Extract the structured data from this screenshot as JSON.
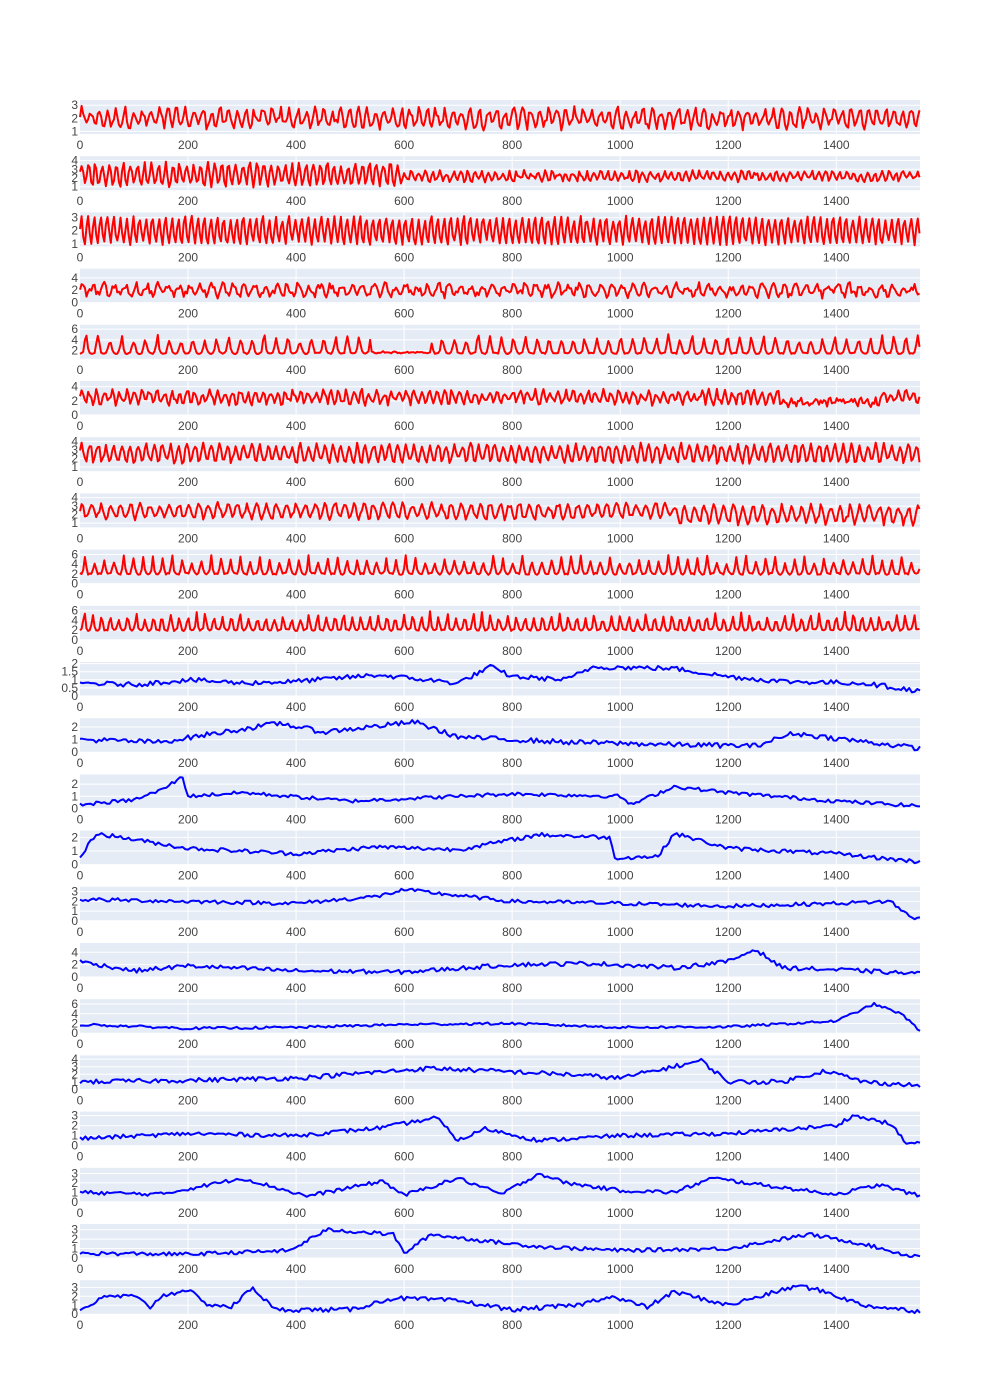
{
  "colors": {
    "plot_bg": "#E5ECF6",
    "grid": "#ffffff",
    "tick_text": "#444444",
    "red": "#FF0000",
    "blue": "#0000FF"
  },
  "chart_data": {
    "type": "line",
    "layout": "22 stacked subplots sharing one x range",
    "x_ticks": [
      0,
      200,
      400,
      600,
      800,
      1000,
      1200,
      1400
    ],
    "xlim": [
      0,
      1555
    ],
    "series_length": 1556,
    "panels": [
      {
        "color": "#FF0000",
        "ylim": [
          0.8,
          3.4
        ],
        "y_ticks": [
          1,
          2,
          3
        ],
        "y_tick_labels": [
          "1",
          "2",
          "3"
        ],
        "pattern": "oscillating",
        "base": 2.0,
        "amplitude": 0.6,
        "period": 16,
        "noise": 0.35,
        "segments": []
      },
      {
        "color": "#FF0000",
        "ylim": [
          0.6,
          4.5
        ],
        "y_ticks": [
          1,
          2,
          3,
          4
        ],
        "y_tick_labels": [
          "1",
          "2",
          "3",
          "4"
        ],
        "pattern": "oscillating",
        "base": 2.4,
        "amplitude": 1.2,
        "period": 13,
        "noise": 0.3,
        "segments": [
          {
            "from": 600,
            "to": 1555,
            "amplitude": 0.45,
            "base": 2.2
          }
        ]
      },
      {
        "color": "#FF0000",
        "ylim": [
          0.8,
          3.4
        ],
        "y_ticks": [
          1,
          2,
          3
        ],
        "y_tick_labels": [
          "1",
          "2",
          "3"
        ],
        "pattern": "oscillating",
        "base": 2.0,
        "amplitude": 1.0,
        "period": 12,
        "noise": 0.15,
        "segments": []
      },
      {
        "color": "#FF0000",
        "ylim": [
          0,
          5.5
        ],
        "y_ticks": [
          0,
          2,
          4
        ],
        "y_tick_labels": [
          "0",
          "2",
          "4"
        ],
        "pattern": "oscillating",
        "base": 2.0,
        "amplitude": 0.8,
        "period": 20,
        "noise": 0.6,
        "segments": []
      },
      {
        "color": "#FF0000",
        "ylim": [
          0.5,
          6.8
        ],
        "y_ticks": [
          2,
          4,
          6
        ],
        "y_tick_labels": [
          "2",
          "4",
          "6"
        ],
        "pattern": "spiky",
        "base": 1.5,
        "amplitude": 2.8,
        "period": 22,
        "noise": 0.25,
        "segments": [
          {
            "from": 540,
            "to": 650,
            "amplitude": 0.2,
            "base": 1.6
          }
        ]
      },
      {
        "color": "#FF0000",
        "ylim": [
          0,
          4.8
        ],
        "y_ticks": [
          0,
          2,
          4
        ],
        "y_tick_labels": [
          "0",
          "2",
          "4"
        ],
        "pattern": "oscillating",
        "base": 2.5,
        "amplitude": 0.8,
        "period": 14,
        "noise": 0.45,
        "segments": [
          {
            "from": 1300,
            "to": 1480,
            "amplitude": 0.3,
            "base": 1.8
          }
        ]
      },
      {
        "color": "#FF0000",
        "ylim": [
          0.5,
          4.5
        ],
        "y_ticks": [
          1,
          2,
          3,
          4
        ],
        "y_tick_labels": [
          "1",
          "2",
          "3",
          "4"
        ],
        "pattern": "oscillating",
        "base": 2.6,
        "amplitude": 1.0,
        "period": 15,
        "noise": 0.3,
        "segments": []
      },
      {
        "color": "#FF0000",
        "ylim": [
          0.5,
          4.5
        ],
        "y_ticks": [
          1,
          2,
          3,
          4
        ],
        "y_tick_labels": [
          "1",
          "2",
          "3",
          "4"
        ],
        "pattern": "oscillating",
        "base": 2.4,
        "amplitude": 0.8,
        "period": 18,
        "noise": 0.3,
        "segments": [
          {
            "from": 1100,
            "to": 1555,
            "amplitude": 1.0,
            "base": 2.0
          }
        ]
      },
      {
        "color": "#FF0000",
        "ylim": [
          0,
          7
        ],
        "y_ticks": [
          0,
          2,
          4,
          6
        ],
        "y_tick_labels": [
          "0",
          "2",
          "4",
          "6"
        ],
        "pattern": "spiky",
        "base": 2.0,
        "amplitude": 3.0,
        "period": 18,
        "noise": 0.4,
        "segments": []
      },
      {
        "color": "#FF0000",
        "ylim": [
          0,
          7
        ],
        "y_ticks": [
          0,
          2,
          4,
          6
        ],
        "y_tick_labels": [
          "0",
          "2",
          "4",
          "6"
        ],
        "pattern": "spiky",
        "base": 2.0,
        "amplitude": 3.0,
        "period": 16,
        "noise": 0.4,
        "segments": []
      },
      {
        "color": "#0000FF",
        "ylim": [
          0,
          2.1
        ],
        "y_ticks": [
          0,
          0.5,
          1,
          1.5,
          2
        ],
        "y_tick_labels": [
          "0",
          "0.5",
          "1",
          "1.5",
          "2"
        ],
        "pattern": "smooth",
        "knots": [
          [
            0,
            0.8
          ],
          [
            100,
            0.7
          ],
          [
            200,
            1.0
          ],
          [
            300,
            0.8
          ],
          [
            400,
            0.9
          ],
          [
            550,
            1.3
          ],
          [
            700,
            0.8
          ],
          [
            760,
            1.8
          ],
          [
            800,
            1.2
          ],
          [
            900,
            1.0
          ],
          [
            950,
            1.8
          ],
          [
            1100,
            1.7
          ],
          [
            1200,
            1.2
          ],
          [
            1300,
            0.9
          ],
          [
            1450,
            0.8
          ],
          [
            1555,
            0.3
          ]
        ],
        "noise": 0.15
      },
      {
        "color": "#0000FF",
        "ylim": [
          0,
          2.7
        ],
        "y_ticks": [
          0,
          1,
          2
        ],
        "y_tick_labels": [
          "0",
          "1",
          "2"
        ],
        "pattern": "smooth",
        "knots": [
          [
            0,
            1.0
          ],
          [
            150,
            0.8
          ],
          [
            250,
            1.5
          ],
          [
            370,
            2.3
          ],
          [
            450,
            1.6
          ],
          [
            620,
            2.4
          ],
          [
            700,
            1.2
          ],
          [
            900,
            0.8
          ],
          [
            1100,
            0.6
          ],
          [
            1250,
            0.5
          ],
          [
            1320,
            1.5
          ],
          [
            1420,
            1.0
          ],
          [
            1555,
            0.3
          ]
        ],
        "noise": 0.2
      },
      {
        "color": "#0000FF",
        "ylim": [
          0,
          2.8
        ],
        "y_ticks": [
          0,
          1,
          2
        ],
        "y_tick_labels": [
          "0",
          "1",
          "2"
        ],
        "pattern": "smooth",
        "knots": [
          [
            0,
            0.3
          ],
          [
            100,
            0.7
          ],
          [
            150,
            1.5
          ],
          [
            190,
            2.6
          ],
          [
            200,
            1.0
          ],
          [
            300,
            1.3
          ],
          [
            500,
            0.6
          ],
          [
            800,
            1.2
          ],
          [
            1000,
            1.0
          ],
          [
            1020,
            0.3
          ],
          [
            1100,
            1.8
          ],
          [
            1200,
            1.3
          ],
          [
            1400,
            0.6
          ],
          [
            1555,
            0.2
          ]
        ],
        "noise": 0.15
      },
      {
        "color": "#0000FF",
        "ylim": [
          0,
          2.5
        ],
        "y_ticks": [
          0,
          1,
          2
        ],
        "y_tick_labels": [
          "0",
          "1",
          "2"
        ],
        "pattern": "smooth",
        "knots": [
          [
            0,
            0.5
          ],
          [
            30,
            2.3
          ],
          [
            200,
            1.2
          ],
          [
            400,
            0.8
          ],
          [
            550,
            1.3
          ],
          [
            700,
            1.1
          ],
          [
            850,
            2.2
          ],
          [
            980,
            2.0
          ],
          [
            990,
            0.5
          ],
          [
            1070,
            0.6
          ],
          [
            1100,
            2.3
          ],
          [
            1200,
            1.2
          ],
          [
            1400,
            0.8
          ],
          [
            1555,
            0.2
          ]
        ],
        "noise": 0.15
      },
      {
        "color": "#0000FF",
        "ylim": [
          0,
          3.5
        ],
        "y_ticks": [
          0,
          1,
          2,
          3
        ],
        "y_tick_labels": [
          "0",
          "1",
          "2",
          "3"
        ],
        "pattern": "smooth",
        "knots": [
          [
            0,
            2.2
          ],
          [
            200,
            2.0
          ],
          [
            400,
            1.8
          ],
          [
            550,
            2.5
          ],
          [
            600,
            3.2
          ],
          [
            800,
            2.0
          ],
          [
            1000,
            1.8
          ],
          [
            1200,
            1.5
          ],
          [
            1400,
            1.8
          ],
          [
            1500,
            2.0
          ],
          [
            1540,
            0.3
          ],
          [
            1555,
            0.4
          ]
        ],
        "noise": 0.2
      },
      {
        "color": "#0000FF",
        "ylim": [
          0,
          5.5
        ],
        "y_ticks": [
          0,
          2,
          4
        ],
        "y_tick_labels": [
          "0",
          "2",
          "4"
        ],
        "pattern": "smooth",
        "knots": [
          [
            0,
            2.5
          ],
          [
            100,
            1.0
          ],
          [
            200,
            1.8
          ],
          [
            400,
            1.0
          ],
          [
            600,
            0.8
          ],
          [
            800,
            2.0
          ],
          [
            950,
            2.2
          ],
          [
            1100,
            1.5
          ],
          [
            1200,
            2.5
          ],
          [
            1250,
            4.5
          ],
          [
            1300,
            1.5
          ],
          [
            1450,
            1.0
          ],
          [
            1555,
            0.5
          ]
        ],
        "noise": 0.35
      },
      {
        "color": "#0000FF",
        "ylim": [
          0,
          7
        ],
        "y_ticks": [
          0,
          2,
          4,
          6
        ],
        "y_tick_labels": [
          "0",
          "2",
          "4",
          "6"
        ],
        "pattern": "smooth",
        "knots": [
          [
            0,
            1.8
          ],
          [
            200,
            1.0
          ],
          [
            400,
            1.2
          ],
          [
            600,
            1.8
          ],
          [
            800,
            2.0
          ],
          [
            1000,
            1.2
          ],
          [
            1200,
            1.3
          ],
          [
            1400,
            2.5
          ],
          [
            1470,
            6.0
          ],
          [
            1520,
            4.0
          ],
          [
            1555,
            0.5
          ]
        ],
        "noise": 0.25
      },
      {
        "color": "#0000FF",
        "ylim": [
          0,
          4.5
        ],
        "y_ticks": [
          0,
          1,
          2,
          3,
          4
        ],
        "y_tick_labels": [
          "0",
          "1",
          "2",
          "3",
          "4"
        ],
        "pattern": "smooth",
        "knots": [
          [
            0,
            1.0
          ],
          [
            200,
            1.2
          ],
          [
            400,
            1.5
          ],
          [
            650,
            2.8
          ],
          [
            900,
            2.0
          ],
          [
            1000,
            1.5
          ],
          [
            1150,
            3.8
          ],
          [
            1200,
            1.0
          ],
          [
            1300,
            1.0
          ],
          [
            1380,
            2.5
          ],
          [
            1450,
            1.0
          ],
          [
            1555,
            0.5
          ]
        ],
        "noise": 0.3
      },
      {
        "color": "#0000FF",
        "ylim": [
          0,
          3.4
        ],
        "y_ticks": [
          0,
          1,
          2,
          3
        ],
        "y_tick_labels": [
          "0",
          "1",
          "2",
          "3"
        ],
        "pattern": "smooth",
        "knots": [
          [
            0,
            0.7
          ],
          [
            200,
            1.2
          ],
          [
            400,
            1.0
          ],
          [
            560,
            1.8
          ],
          [
            660,
            2.8
          ],
          [
            700,
            0.5
          ],
          [
            750,
            1.7
          ],
          [
            850,
            0.5
          ],
          [
            1000,
            1.0
          ],
          [
            1200,
            1.2
          ],
          [
            1400,
            2.0
          ],
          [
            1430,
            3.0
          ],
          [
            1500,
            2.2
          ],
          [
            1530,
            0.2
          ],
          [
            1555,
            0.3
          ]
        ],
        "noise": 0.2
      },
      {
        "color": "#0000FF",
        "ylim": [
          0,
          3.6
        ],
        "y_ticks": [
          0,
          1,
          2,
          3
        ],
        "y_tick_labels": [
          "0",
          "1",
          "2",
          "3"
        ],
        "pattern": "smooth",
        "knots": [
          [
            0,
            1.0
          ],
          [
            150,
            0.8
          ],
          [
            300,
            2.5
          ],
          [
            420,
            0.6
          ],
          [
            500,
            1.5
          ],
          [
            560,
            2.2
          ],
          [
            600,
            0.7
          ],
          [
            700,
            2.5
          ],
          [
            780,
            0.8
          ],
          [
            850,
            3.0
          ],
          [
            900,
            2.0
          ],
          [
            1000,
            1.2
          ],
          [
            1100,
            1.0
          ],
          [
            1170,
            2.5
          ],
          [
            1300,
            1.5
          ],
          [
            1400,
            0.8
          ],
          [
            1480,
            1.8
          ],
          [
            1555,
            0.6
          ]
        ],
        "noise": 0.2
      },
      {
        "color": "#0000FF",
        "ylim": [
          0,
          3.6
        ],
        "y_ticks": [
          0,
          1,
          2,
          3
        ],
        "y_tick_labels": [
          "0",
          "1",
          "2",
          "3"
        ],
        "pattern": "smooth",
        "knots": [
          [
            0,
            0.5
          ],
          [
            200,
            0.4
          ],
          [
            390,
            0.8
          ],
          [
            440,
            2.5
          ],
          [
            460,
            3.0
          ],
          [
            580,
            2.5
          ],
          [
            600,
            0.5
          ],
          [
            650,
            2.5
          ],
          [
            750,
            1.8
          ],
          [
            850,
            1.2
          ],
          [
            1000,
            0.8
          ],
          [
            1200,
            1.0
          ],
          [
            1350,
            2.5
          ],
          [
            1450,
            1.5
          ],
          [
            1530,
            0.3
          ],
          [
            1555,
            0.2
          ]
        ],
        "noise": 0.2
      },
      {
        "color": "#0000FF",
        "ylim": [
          0,
          3.8
        ],
        "y_ticks": [
          0,
          1,
          2,
          3
        ],
        "y_tick_labels": [
          "0",
          "1",
          "2",
          "3"
        ],
        "pattern": "smooth",
        "knots": [
          [
            0,
            0.5
          ],
          [
            50,
            2.0
          ],
          [
            100,
            2.0
          ],
          [
            130,
            0.8
          ],
          [
            150,
            2.0
          ],
          [
            200,
            2.8
          ],
          [
            230,
            1.2
          ],
          [
            280,
            0.8
          ],
          [
            320,
            3.0
          ],
          [
            360,
            0.5
          ],
          [
            500,
            0.5
          ],
          [
            580,
            1.8
          ],
          [
            700,
            1.5
          ],
          [
            800,
            0.5
          ],
          [
            920,
            1.0
          ],
          [
            980,
            2.0
          ],
          [
            1050,
            0.8
          ],
          [
            1100,
            2.5
          ],
          [
            1200,
            1.0
          ],
          [
            1330,
            3.2
          ],
          [
            1380,
            2.5
          ],
          [
            1450,
            1.0
          ],
          [
            1555,
            0.3
          ]
        ],
        "noise": 0.25
      }
    ]
  }
}
